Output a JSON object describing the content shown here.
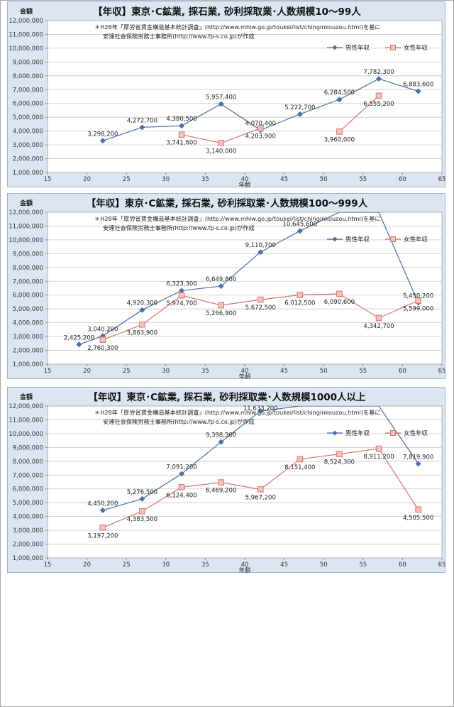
{
  "source_note_line1": "＊H28年「厚労省賃金構造基本統計調査」(http://www.mhlw.go.jp/toukei/list/chinginkouzou.html)を基に",
  "source_note_line2": "安達社会保険労務士事務所(http://www.fp-s.co.jp)が作成",
  "colors": {
    "male": "#4a6fa5",
    "female": "#d9736d",
    "female_fill": "#f2c4c1",
    "panel": "#dce6f2",
    "plot": "#ffffff",
    "grid": "#c8c8c8"
  },
  "chart_data": [
    {
      "type": "line",
      "title": "【年収】東京･C鉱業, 採石業, 砂利採取業･人数規模10～99人",
      "xlabel": "年齢",
      "ylabel": "金額",
      "xlim": [
        15,
        65
      ],
      "ylim": [
        1000000,
        12000000
      ],
      "xticks": [
        "15",
        "20",
        "25",
        "30",
        "35",
        "40",
        "45",
        "50",
        "55",
        "60",
        "65"
      ],
      "yticks": [
        "1,000,000",
        "2,000,000",
        "3,000,000",
        "4,000,000",
        "5,000,000",
        "6,000,000",
        "7,000,000",
        "8,000,000",
        "9,000,000",
        "10,000,000",
        "11,000,000",
        "12,000,000"
      ],
      "grid": true,
      "legend": "top-right",
      "series": [
        {
          "name": "男性年収",
          "key": "male",
          "points": [
            [
              22,
              3298200
            ],
            [
              27,
              4272700
            ],
            [
              32,
              4380500
            ],
            [
              37,
              5957400
            ],
            [
              42,
              4070400
            ],
            [
              47,
              5222700
            ],
            [
              52,
              6284500
            ],
            [
              57,
              7782300
            ],
            [
              62,
              6883600
            ]
          ],
          "labels": [
            "3,298,200",
            "4,272,700",
            "4,380,500",
            "5,957,400",
            "4,070,400",
            "5,222,700",
            "6,284,500",
            "7,782,300",
            "6,883,600"
          ]
        },
        {
          "name": "女性年収",
          "key": "female",
          "points": [
            [
              32,
              3741600
            ],
            [
              37,
              3140000
            ],
            [
              42,
              4203900
            ],
            [
              52,
              3960000
            ],
            [
              57,
              6555200
            ]
          ],
          "segments": [
            [
              0,
              1,
              2
            ],
            [
              3,
              4
            ]
          ],
          "labels": [
            "3,741,600",
            "3,140,000",
            "4,203,900",
            "3,960,000",
            "6,555,200"
          ]
        }
      ]
    },
    {
      "type": "line",
      "title": "【年収】東京･C鉱業, 採石業, 砂利採取業･人数規模100～999人",
      "xlabel": "年齢",
      "ylabel": "金額",
      "xlim": [
        15,
        65
      ],
      "ylim": [
        1000000,
        12000000
      ],
      "xticks": [
        "15",
        "20",
        "25",
        "30",
        "35",
        "40",
        "45",
        "50",
        "55",
        "60",
        "65"
      ],
      "yticks": [
        "1,000,000",
        "2,000,000",
        "3,000,000",
        "4,000,000",
        "5,000,000",
        "6,000,000",
        "7,000,000",
        "8,000,000",
        "9,000,000",
        "10,000,000",
        "11,000,000",
        "12,000,000"
      ],
      "grid": true,
      "legend": "top-right",
      "series": [
        {
          "name": "男性年収",
          "key": "male",
          "points": [
            [
              19,
              2425200
            ],
            [
              22,
              3040200
            ],
            [
              27,
              4920300
            ],
            [
              32,
              6323300
            ],
            [
              37,
              6649800
            ],
            [
              42,
              9110700
            ],
            [
              47,
              10645600
            ],
            [
              52,
              12000000
            ],
            [
              57,
              12000000
            ],
            [
              62,
              5450200
            ]
          ],
          "labels": [
            "2,425,200",
            "3,040,200",
            "4,920,300",
            "6,323,300",
            "6,649,800",
            "9,110,700",
            "10,645,600",
            "",
            "",
            "5,450,200"
          ],
          "hidden_markers": [
            7,
            8
          ]
        },
        {
          "name": "女性年収",
          "key": "female",
          "points": [
            [
              22,
              2760300
            ],
            [
              27,
              3863900
            ],
            [
              32,
              5974700
            ],
            [
              37,
              5266900
            ],
            [
              42,
              5672500
            ],
            [
              47,
              6012500
            ],
            [
              52,
              6090600
            ],
            [
              57,
              4342700
            ],
            [
              62,
              5599000
            ]
          ],
          "labels": [
            "2,760,300",
            "3,863,900",
            "5,974,700",
            "5,266,900",
            "5,672,500",
            "6,012,500",
            "6,090,600",
            "4,342,700",
            "5,599,000"
          ]
        }
      ]
    },
    {
      "type": "line",
      "title": "【年収】東京･C鉱業, 採石業, 砂利採取業･人数規模1000人以上",
      "xlabel": "年齢",
      "ylabel": "金額",
      "xlim": [
        15,
        65
      ],
      "ylim": [
        1000000,
        12000000
      ],
      "xticks": [
        "15",
        "20",
        "25",
        "30",
        "35",
        "40",
        "45",
        "50",
        "55",
        "60",
        "65"
      ],
      "yticks": [
        "1,000,000",
        "2,000,000",
        "3,000,000",
        "4,000,000",
        "5,000,000",
        "6,000,000",
        "7,000,000",
        "8,000,000",
        "9,000,000",
        "10,000,000",
        "11,000,000",
        "12,000,000"
      ],
      "grid": true,
      "legend": "top-right",
      "series": [
        {
          "name": "男性年収",
          "key": "male",
          "points": [
            [
              22,
              4450200
            ],
            [
              27,
              5276500
            ],
            [
              32,
              7091200
            ],
            [
              37,
              9398300
            ],
            [
              42,
              11633200
            ],
            [
              47,
              12000000
            ],
            [
              52,
              12000000
            ],
            [
              57,
              12000000
            ],
            [
              62,
              7819900
            ]
          ],
          "labels": [
            "4,450,200",
            "5,276,500",
            "7,091,200",
            "9,398,300",
            "11,633,200",
            "",
            "",
            "",
            "7,819,900"
          ],
          "hidden_markers": [
            5,
            6,
            7
          ]
        },
        {
          "name": "女性年収",
          "key": "female",
          "points": [
            [
              22,
              3197200
            ],
            [
              27,
              4383500
            ],
            [
              32,
              6124400
            ],
            [
              37,
              6469200
            ],
            [
              42,
              5967200
            ],
            [
              47,
              8151400
            ],
            [
              52,
              8524300
            ],
            [
              57,
              8911200
            ],
            [
              62,
              4505500
            ]
          ],
          "labels": [
            "3,197,200",
            "4,383,500",
            "6,124,400",
            "6,469,200",
            "5,967,200",
            "8,151,400",
            "8,524,300",
            "8,911,200",
            "4,505,500"
          ]
        }
      ]
    }
  ]
}
